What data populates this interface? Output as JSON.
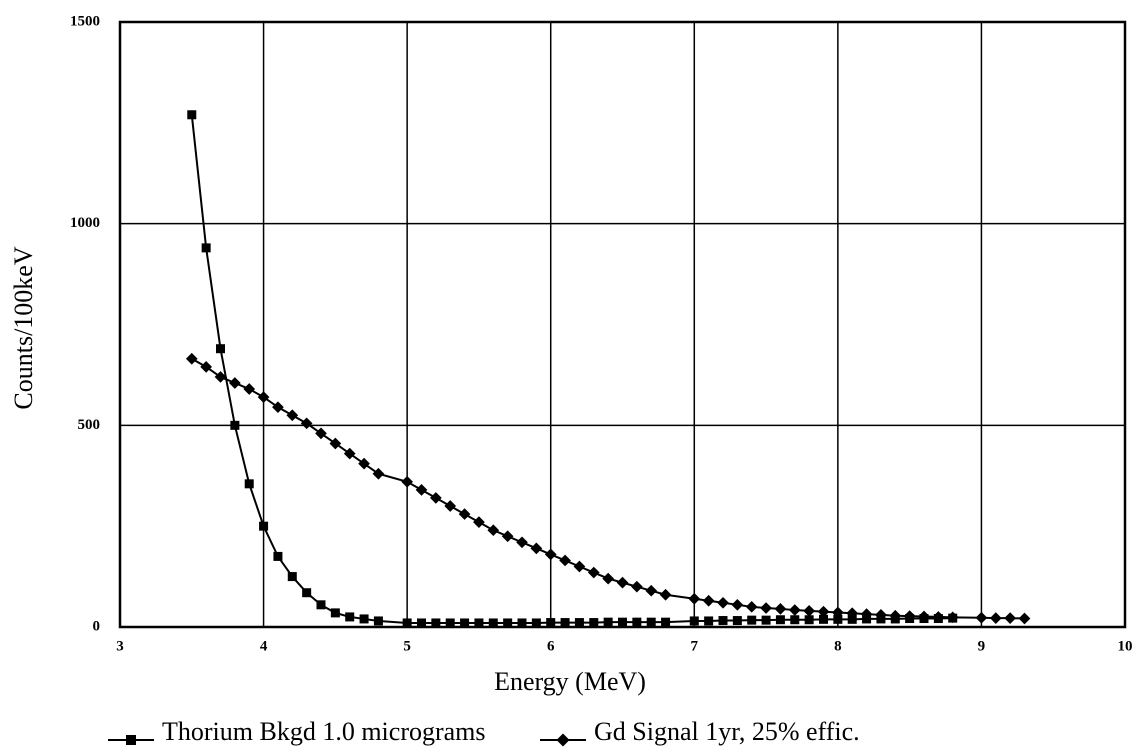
{
  "chart_data": {
    "type": "line",
    "x_label": "Energy (MeV)",
    "y_label": "Counts/100keV",
    "xlim": [
      3,
      10
    ],
    "ylim": [
      0,
      1500
    ],
    "xticks": [
      3,
      4,
      5,
      6,
      7,
      8,
      9,
      10
    ],
    "yticks": [
      0,
      500,
      1000,
      1500
    ],
    "grid": true,
    "legend": "bottom",
    "series": [
      {
        "name": "Thorium Bkgd 1.0 micrograms",
        "color": "#000000",
        "marker": "square",
        "x": [
          3.5,
          3.6,
          3.7,
          3.8,
          3.9,
          4,
          4.1,
          4.2,
          4.3,
          4.4,
          4.5,
          4.6,
          4.7,
          4.8,
          5,
          5.1,
          5.2,
          5.3,
          5.4,
          5.5,
          5.6,
          5.7,
          5.8,
          5.9,
          6,
          6.1,
          6.2,
          6.3,
          6.4,
          6.5,
          6.6,
          6.7,
          6.8,
          7,
          7.1,
          7.2,
          7.3,
          7.4,
          7.5,
          7.6,
          7.7,
          7.8,
          7.9,
          8,
          8.1,
          8.2,
          8.3,
          8.4,
          8.5,
          8.6,
          8.7,
          8.8
        ],
        "values": [
          1270,
          940,
          690,
          500,
          355,
          250,
          175,
          125,
          85,
          55,
          35,
          25,
          20,
          15,
          10,
          10,
          10,
          10,
          10,
          10,
          10,
          10,
          10,
          10,
          11,
          11,
          11,
          11,
          12,
          12,
          12,
          12,
          12,
          15,
          15,
          16,
          16,
          17,
          17,
          18,
          18,
          18,
          19,
          19,
          19,
          20,
          20,
          20,
          21,
          21,
          21,
          22
        ]
      },
      {
        "name": "Gd Signal 1yr, 25% effic.",
        "color": "#000000",
        "marker": "diamond",
        "x": [
          3.5,
          3.6,
          3.7,
          3.8,
          3.9,
          4,
          4.1,
          4.2,
          4.3,
          4.4,
          4.5,
          4.6,
          4.7,
          4.8,
          5,
          5.1,
          5.2,
          5.3,
          5.4,
          5.5,
          5.6,
          5.7,
          5.8,
          5.9,
          6,
          6.1,
          6.2,
          6.3,
          6.4,
          6.5,
          6.6,
          6.7,
          6.8,
          7,
          7.1,
          7.2,
          7.3,
          7.4,
          7.5,
          7.6,
          7.7,
          7.8,
          7.9,
          8,
          8.1,
          8.2,
          8.3,
          8.4,
          8.5,
          8.6,
          8.7,
          8.8,
          9,
          9.1,
          9.2,
          9.3
        ],
        "values": [
          665,
          645,
          620,
          605,
          590,
          570,
          545,
          525,
          505,
          480,
          455,
          430,
          405,
          380,
          360,
          340,
          320,
          300,
          280,
          260,
          240,
          225,
          210,
          195,
          180,
          165,
          150,
          135,
          120,
          110,
          100,
          90,
          80,
          70,
          65,
          60,
          55,
          50,
          47,
          45,
          42,
          40,
          38,
          36,
          34,
          32,
          30,
          28,
          27,
          26,
          25,
          24,
          23,
          22,
          22,
          21
        ]
      }
    ]
  }
}
